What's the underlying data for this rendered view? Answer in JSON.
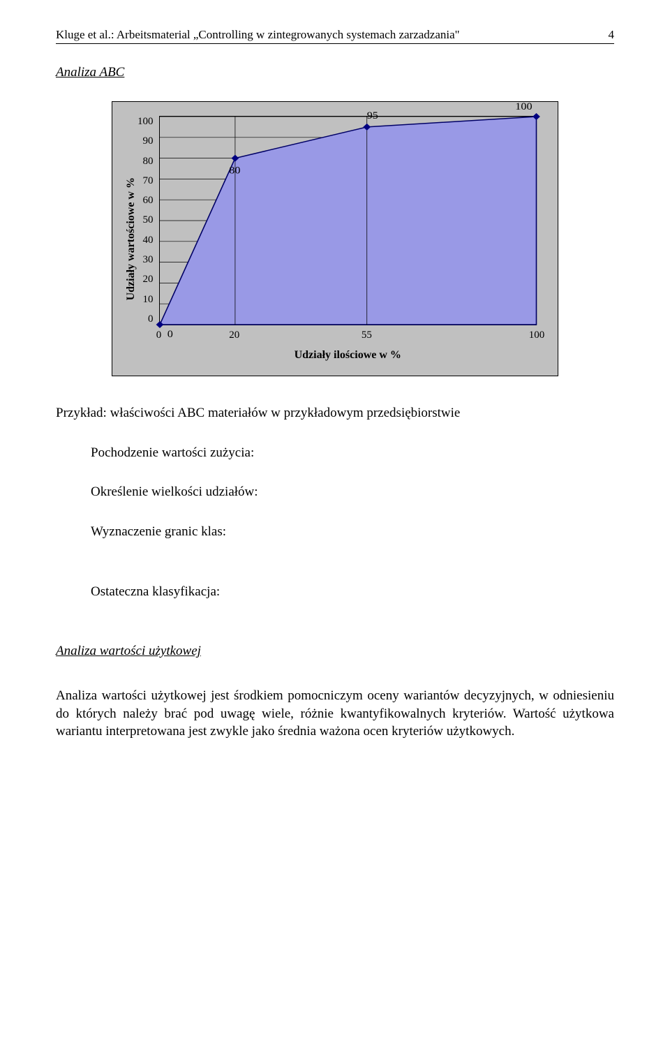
{
  "header": {
    "authors": "Kluge et al.",
    "title": ": Arbeitsmaterial „Controlling w zintegrowanych systemach zarzadzania\"",
    "page": "4"
  },
  "section1_title": "Analiza ABC",
  "chart": {
    "type": "area",
    "y_label": "Udziały wartościowe w %",
    "x_label": "Udziały ilościowe w %",
    "y_ticks": [
      "100",
      "90",
      "80",
      "70",
      "60",
      "50",
      "40",
      "30",
      "20",
      "10",
      "0"
    ],
    "x_ticks": [
      {
        "label": "0",
        "pos": 0
      },
      {
        "label": "20",
        "pos": 20
      },
      {
        "label": "55",
        "pos": 55
      },
      {
        "label": "100",
        "pos": 100
      }
    ],
    "data_points": [
      {
        "x": 0,
        "y": 0,
        "label": "0"
      },
      {
        "x": 20,
        "y": 80,
        "label": "80"
      },
      {
        "x": 55,
        "y": 95,
        "label": "95"
      },
      {
        "x": 100,
        "y": 100,
        "label": "100"
      }
    ],
    "area_fill": "#9999e6",
    "area_stroke": "#000066",
    "marker_fill": "#000080",
    "grid_stroke": "#000000",
    "background": "#c0c0c0"
  },
  "body": {
    "line1": "Przykład: właściwości ABC materiałów w przykładowym przedsiębiorstwie",
    "line2": "Pochodzenie wartości zużycia:",
    "line3": "Określenie wielkości udziałów:",
    "line4": "Wyznaczenie granic klas:",
    "line5": "Ostateczna klasyfikacja:"
  },
  "section2_title": "Analiza wartości użytkowej",
  "paragraph": "Analiza wartości użytkowej jest środkiem pomocniczym oceny wariantów decyzyjnych, w odniesieniu do których należy brać pod uwagę wiele, różnie kwantyfikowalnych kryteriów. Wartość użytkowa wariantu interpretowana jest zwykle jako średnia ważona ocen kryteriów użytkowych."
}
